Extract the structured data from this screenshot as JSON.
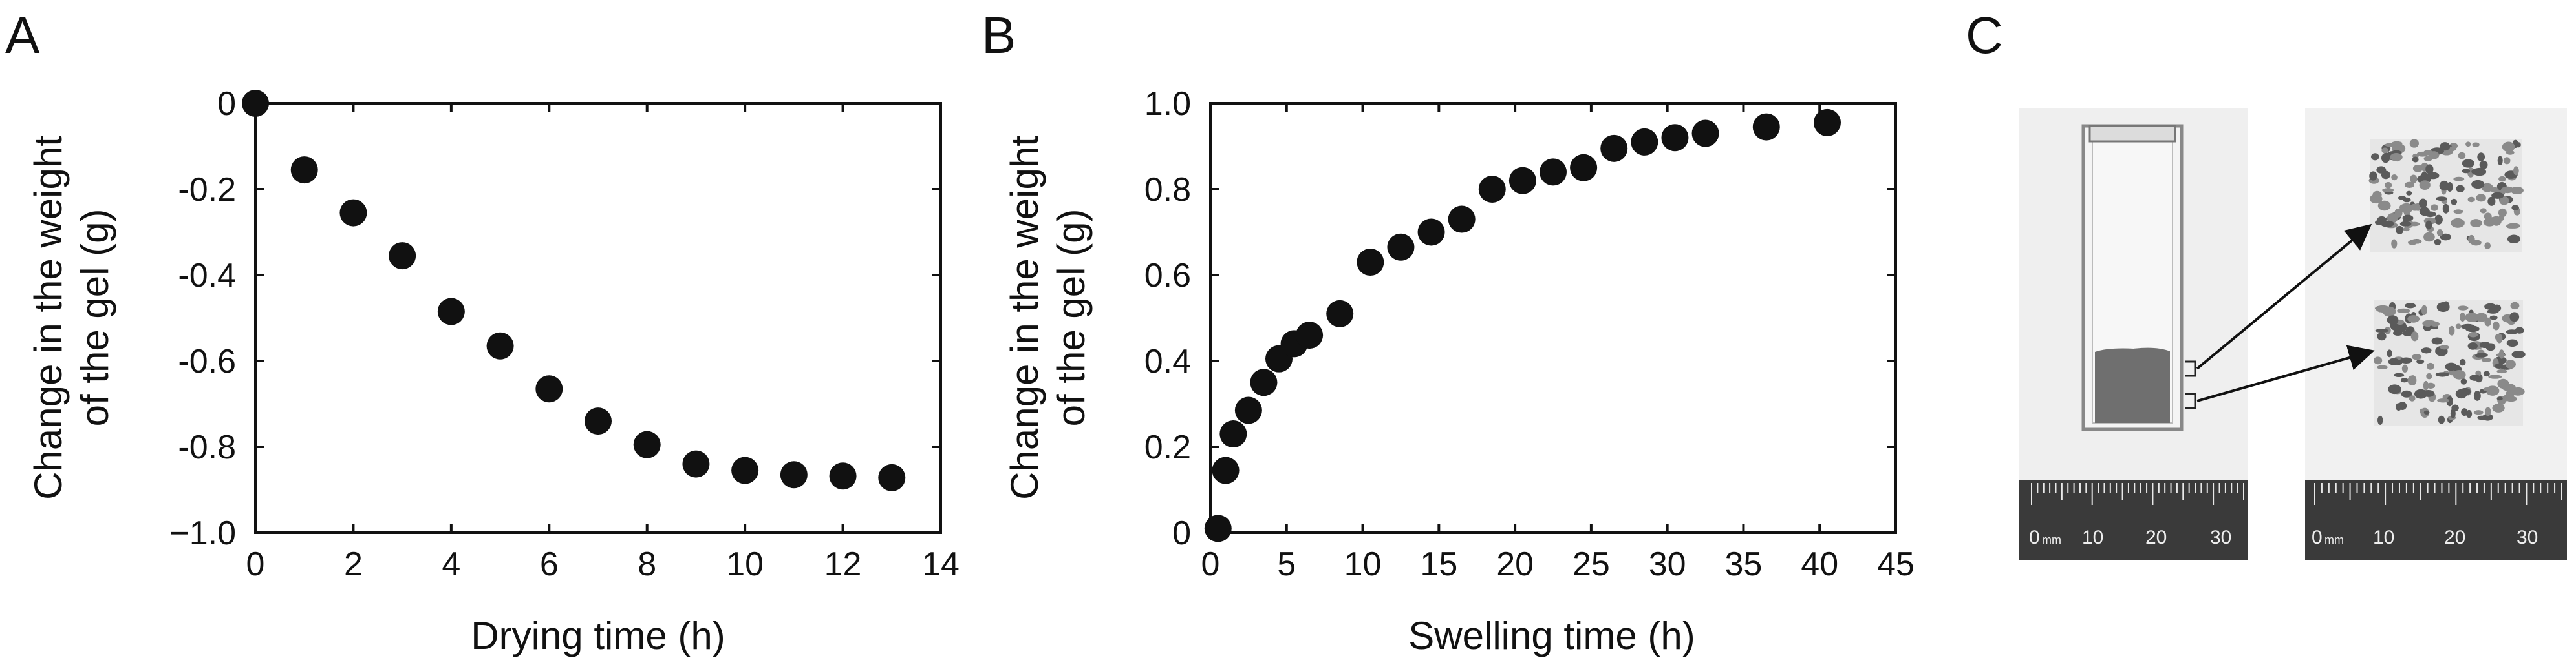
{
  "panels": {
    "a_label": "A",
    "b_label": "B",
    "c_label": "C"
  },
  "chart_data": [
    {
      "id": "A",
      "type": "scatter",
      "xlabel": "Drying time (h)",
      "ylabel_line1": "Change in the weight",
      "ylabel_line2": "of the gel (g)",
      "xlim": [
        0,
        14
      ],
      "ylim": [
        -1.0,
        0
      ],
      "xticks": [
        0,
        2,
        4,
        6,
        8,
        10,
        12,
        14
      ],
      "xtick_labels": [
        "0",
        "2",
        "4",
        "6",
        "8",
        "10",
        "12",
        "14"
      ],
      "yticks": [
        0,
        -0.2,
        -0.4,
        -0.6,
        -0.8,
        -1.0
      ],
      "ytick_labels": [
        "0",
        "-0.2",
        "-0.4",
        "-0.6",
        "-0.8",
        "−1.0"
      ],
      "x": [
        0,
        1,
        2,
        3,
        4,
        5,
        6,
        7,
        8,
        9,
        10,
        11,
        12,
        13
      ],
      "y": [
        0,
        -0.155,
        -0.255,
        -0.355,
        -0.485,
        -0.565,
        -0.665,
        -0.74,
        -0.795,
        -0.84,
        -0.855,
        -0.865,
        -0.868,
        -0.872
      ]
    },
    {
      "id": "B",
      "type": "scatter",
      "xlabel": "Swelling time (h)",
      "ylabel_line1": "Change in the weight",
      "ylabel_line2": "of the gel (g)",
      "xlim": [
        0,
        45
      ],
      "ylim": [
        0,
        1.0
      ],
      "xticks": [
        0,
        5,
        10,
        15,
        20,
        25,
        30,
        35,
        40,
        45
      ],
      "xtick_labels": [
        "0",
        "5",
        "10",
        "15",
        "20",
        "25",
        "30",
        "35",
        "40",
        "45"
      ],
      "yticks": [
        0,
        0.2,
        0.4,
        0.6,
        0.8,
        1.0
      ],
      "ytick_labels": [
        "0",
        "0.2",
        "0.4",
        "0.6",
        "0.8",
        "1.0"
      ],
      "x": [
        0.5,
        1,
        1.5,
        2.5,
        3.5,
        4.5,
        5.5,
        6.5,
        8.5,
        10.5,
        12.5,
        14.5,
        16.5,
        18.5,
        20.5,
        22.5,
        24.5,
        26.5,
        28.5,
        30.5,
        32.5,
        36.5,
        40.5
      ],
      "y": [
        0.01,
        0.145,
        0.23,
        0.285,
        0.35,
        0.405,
        0.44,
        0.46,
        0.51,
        0.63,
        0.665,
        0.7,
        0.73,
        0.8,
        0.82,
        0.84,
        0.85,
        0.895,
        0.91,
        0.92,
        0.93,
        0.945,
        0.955
      ]
    }
  ],
  "photos": {
    "left_ruler": {
      "unit": "mm",
      "labels": [
        "0",
        "10",
        "20",
        "30"
      ]
    },
    "right_ruler": {
      "unit": "mm",
      "labels": [
        "0",
        "10",
        "20",
        "30"
      ]
    }
  }
}
